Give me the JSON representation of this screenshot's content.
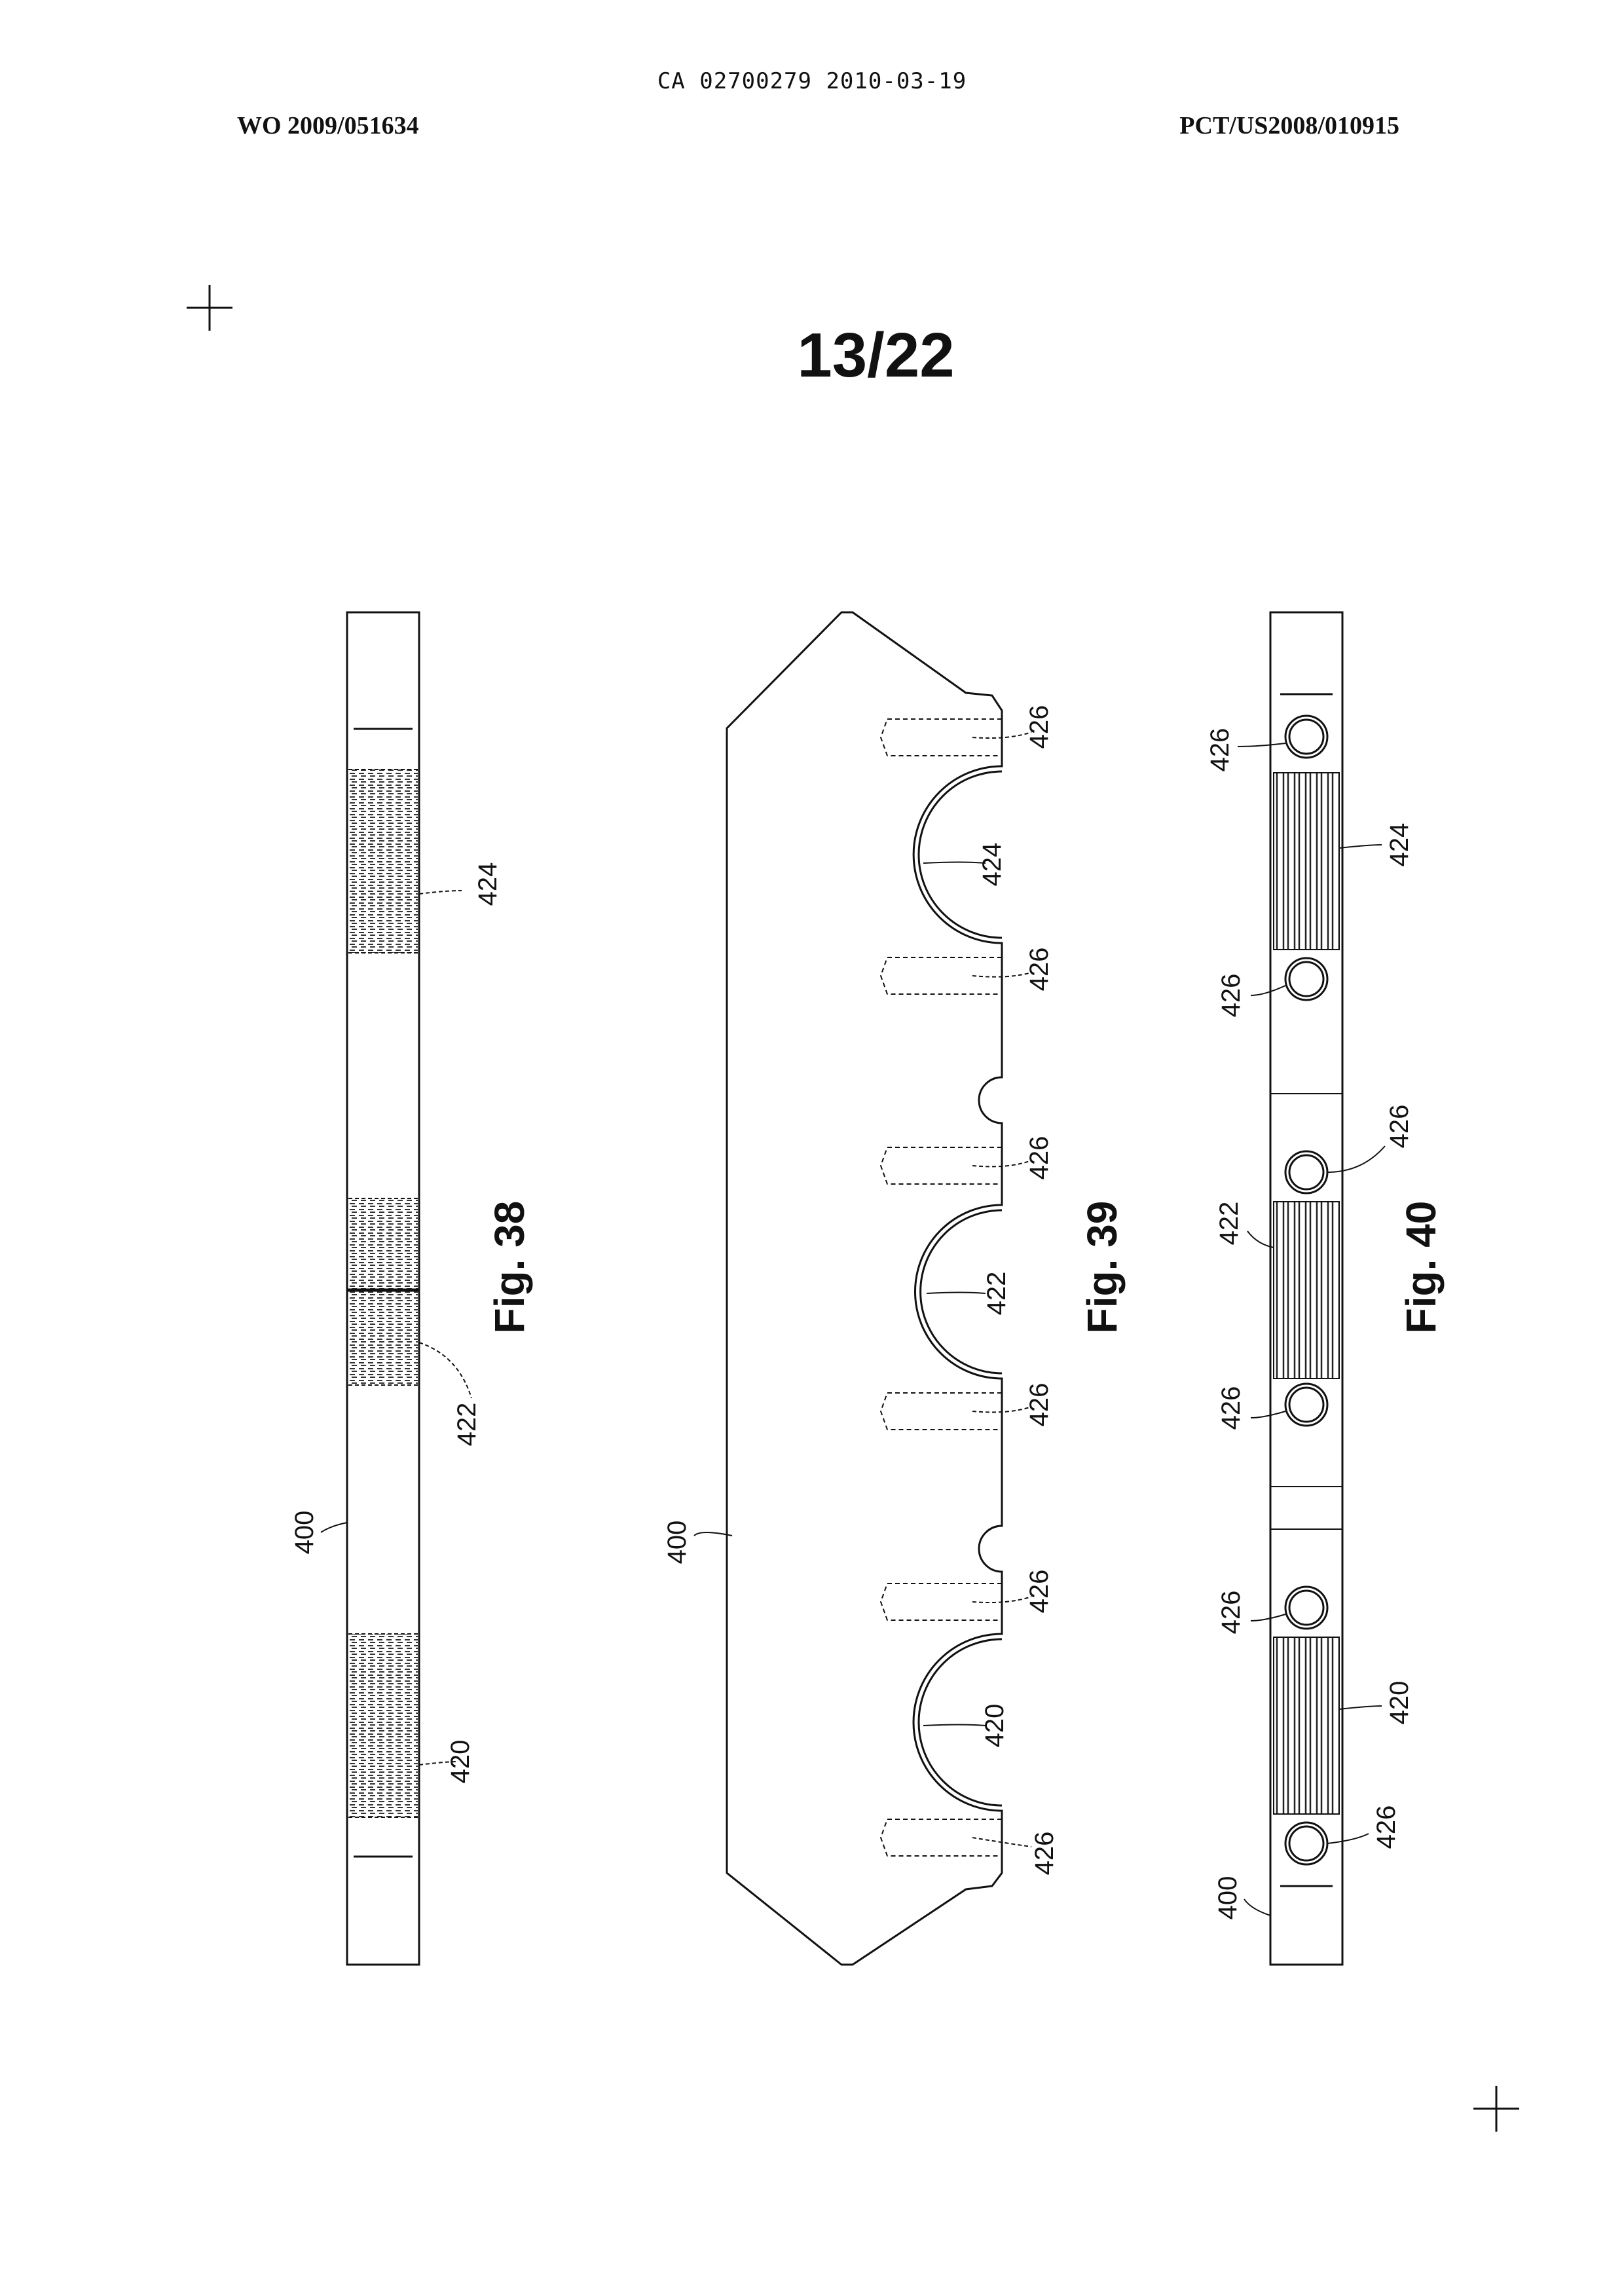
{
  "header": {
    "ca_number": "CA 02700279 2010-03-19",
    "wo_number": "WO 2009/051634",
    "pct_number": "PCT/US2008/010915"
  },
  "sheet": {
    "number": "13/22"
  },
  "figures": {
    "fig38": {
      "caption": "Fig. 38",
      "labels": {
        "l400": "400",
        "l420": "420",
        "l422": "422",
        "l424": "424"
      }
    },
    "fig39": {
      "caption": "Fig. 39",
      "labels": {
        "l400": "400",
        "l420": "420",
        "l422": "422",
        "l424": "424",
        "l426a": "426",
        "l426b": "426",
        "l426c": "426",
        "l426d": "426",
        "l426e": "426",
        "l426f": "426"
      }
    },
    "fig40": {
      "caption": "Fig. 40",
      "labels": {
        "l400": "400",
        "l420": "420",
        "l422": "422",
        "l424": "424",
        "l426a": "426",
        "l426b": "426",
        "l426c": "426",
        "l426d": "426",
        "l426e": "426",
        "l426f": "426"
      }
    }
  }
}
